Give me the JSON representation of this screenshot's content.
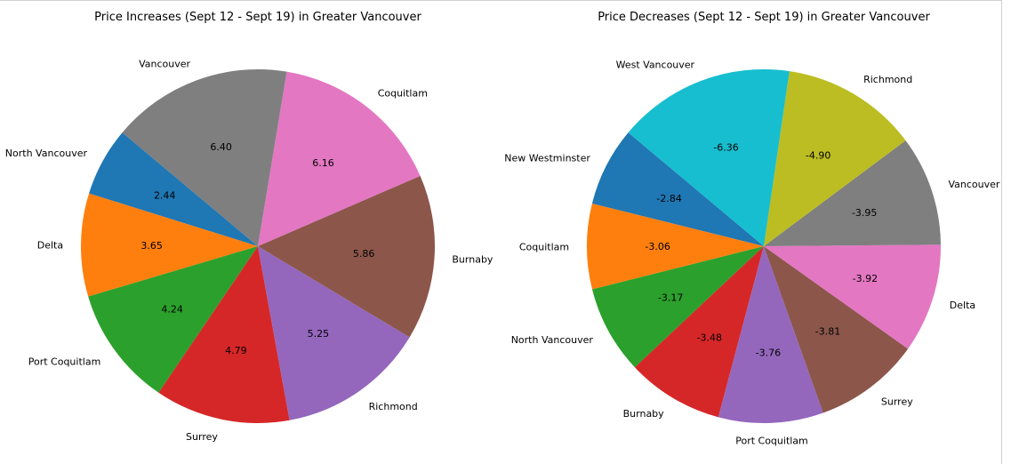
{
  "chart_data": [
    {
      "type": "pie",
      "title": "Price Increases (Sept 12 - Sept 19) in Greater Vancouver",
      "categories": [
        "North Vancouver",
        "Delta",
        "Port Coquitlam",
        "Surrey",
        "Richmond",
        "Burnaby",
        "Coquitlam",
        "Vancouver"
      ],
      "values": [
        2.44,
        3.65,
        4.24,
        4.79,
        5.25,
        5.86,
        6.16,
        6.4
      ],
      "value_labels": [
        "2.44",
        "3.65",
        "4.24",
        "4.79",
        "5.25",
        "5.86",
        "6.16",
        "6.40"
      ],
      "colors": [
        "#1f77b4",
        "#ff7f0e",
        "#2ca02c",
        "#d62728",
        "#9467bd",
        "#8c564b",
        "#e377c2",
        "#7f7f7f"
      ],
      "start_angle_deg": 140,
      "direction": "counterclockwise"
    },
    {
      "type": "pie",
      "title": "Price Decreases (Sept 12 - Sept 19) in Greater Vancouver",
      "categories": [
        "New Westminster",
        "Coquitlam",
        "North Vancouver",
        "Burnaby",
        "Port Coquitlam",
        "Surrey",
        "Delta",
        "Vancouver",
        "Richmond",
        "West Vancouver"
      ],
      "values": [
        -2.84,
        -3.06,
        -3.17,
        -3.48,
        -3.76,
        -3.81,
        -3.92,
        -3.95,
        -4.9,
        -6.36
      ],
      "value_labels": [
        "-2.84",
        "-3.06",
        "-3.17",
        "-3.48",
        "-3.76",
        "-3.81",
        "-3.92",
        "-3.95",
        "-4.90",
        "-6.36"
      ],
      "colors": [
        "#1f77b4",
        "#ff7f0e",
        "#2ca02c",
        "#d62728",
        "#9467bd",
        "#8c564b",
        "#e377c2",
        "#7f7f7f",
        "#bcbd22",
        "#17becf"
      ],
      "start_angle_deg": 140,
      "direction": "counterclockwise"
    }
  ]
}
